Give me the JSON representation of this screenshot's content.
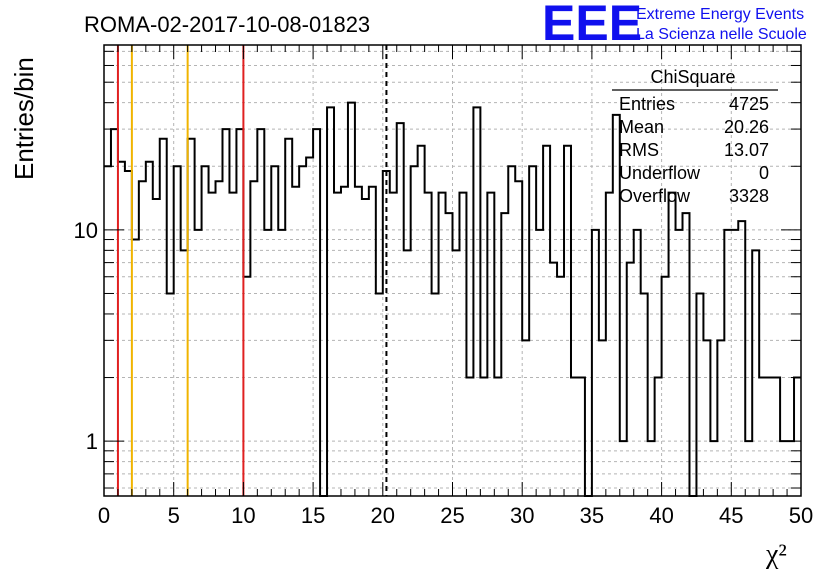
{
  "header": {
    "run_title": "ROMA-02-2017-10-08-01823",
    "logo_text": "EEE",
    "brand_line1": "Extreme Energy Events",
    "brand_line2": "La Scienza nelle Scuole",
    "brand_color": "#1010ee"
  },
  "stats_box": {
    "name": "ChiSquare",
    "rows": [
      {
        "label": "Entries",
        "value": "4725"
      },
      {
        "label": "Mean",
        "value": "20.26"
      },
      {
        "label": "RMS",
        "value": "13.07"
      },
      {
        "label": "Underflow",
        "value": "0"
      },
      {
        "label": "Overflow",
        "value": "3328"
      }
    ]
  },
  "chart_data": {
    "type": "bar",
    "histogram_style": "step",
    "ylabel": "Entries/bin",
    "xlabel": "χ²",
    "xlim": [
      0,
      50
    ],
    "ylim": [
      0.55,
      75
    ],
    "y_scale": "log",
    "grid": true,
    "x_ticks": [
      "0",
      "5",
      "10",
      "15",
      "20",
      "25",
      "30",
      "35",
      "40",
      "45",
      "50"
    ],
    "y_tick_labels": [
      {
        "value": 1,
        "label": "1"
      },
      {
        "value": 10,
        "label": "10"
      }
    ],
    "bin_width": 0.5,
    "bin_start": 0,
    "values": [
      20,
      30,
      21,
      19,
      9,
      17,
      21,
      14,
      27,
      5,
      20,
      8,
      27,
      10,
      20,
      15,
      17,
      30,
      15,
      30,
      6,
      17,
      30,
      10,
      20,
      10,
      27,
      16,
      20,
      22,
      30,
      0.3,
      38,
      15,
      16,
      40,
      16,
      14,
      16,
      5,
      19,
      15,
      32,
      8,
      20,
      25,
      15,
      5,
      15,
      12,
      8,
      15,
      2,
      38,
      2,
      15,
      2,
      12,
      20,
      17,
      3,
      20,
      10,
      25,
      7,
      6,
      25,
      2,
      2,
      0.3,
      10,
      3,
      15,
      35,
      1,
      7,
      10,
      5,
      1,
      2,
      6,
      15,
      10,
      12,
      0.3,
      5,
      3,
      1,
      3,
      10,
      10,
      11,
      1,
      8,
      2,
      2,
      2,
      1,
      1,
      2
    ],
    "reference_lines": [
      {
        "x": 1,
        "color": "#e02020",
        "style": "solid"
      },
      {
        "x": 2,
        "color": "#f0b400",
        "style": "solid"
      },
      {
        "x": 6,
        "color": "#f0b400",
        "style": "solid"
      },
      {
        "x": 10,
        "color": "#e02020",
        "style": "solid"
      },
      {
        "x": 20.26,
        "color": "#000000",
        "style": "dashed"
      }
    ]
  }
}
